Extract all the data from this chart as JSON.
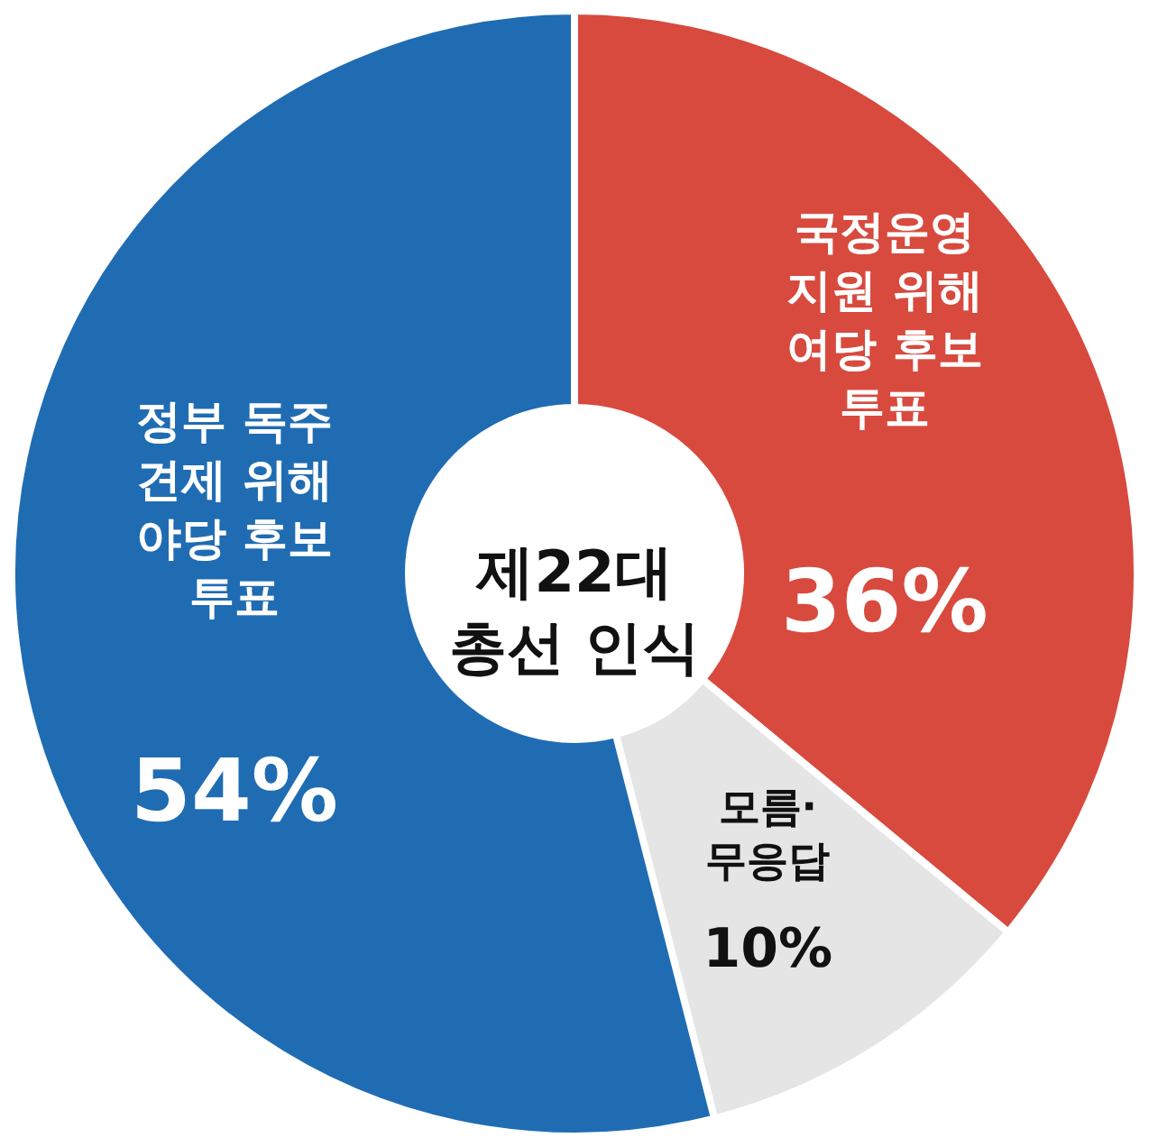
{
  "chart_data": {
    "type": "donut",
    "title": "제22대\n총선 인식",
    "categories": [
      "국정운영\n지원 위해\n여당 후보\n투표",
      "모름·\n무응답",
      "정부 독주\n견제 위해\n야당 후보\n투표"
    ],
    "values": [
      36,
      10,
      54
    ],
    "colors": [
      "#d84a3e",
      "#e5e5e5",
      "#1f6cb3"
    ],
    "value_labels": [
      "36%",
      "10%",
      "54%"
    ]
  }
}
